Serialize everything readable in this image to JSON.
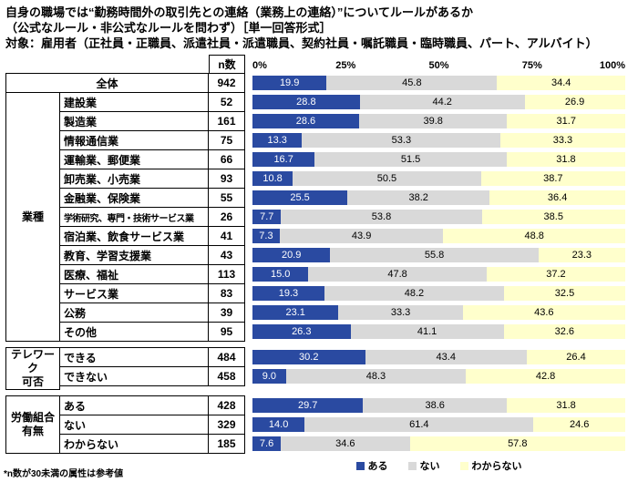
{
  "title": {
    "line1": "自身の職場では“勤務時間外の取引先との連絡（業務上の連絡）”についてルールがあるか",
    "line2": "（公式なルール・非公式なルールを問わず）［単一回答形式］",
    "line3": "対象：雇用者（正社員・正職員、派遣社員・派遣職員、契約社員・嘱託職員・臨時職員、パート、アルバイト）"
  },
  "table": {
    "n_header": "n数"
  },
  "footnote": "*n数が30未満の属性は参考値",
  "chart_data": {
    "type": "bar",
    "stacked": true,
    "orientation": "horizontal",
    "title": "自身の職場では“勤務時間外の取引先との連絡（業務上の連絡）”についてルールがあるか",
    "x_ticks": [
      "0%",
      "25%",
      "50%",
      "75%",
      "100%"
    ],
    "xlim": [
      0,
      100
    ],
    "series_names": [
      "ある",
      "ない",
      "わからない"
    ],
    "colors": [
      "#2a4aa1",
      "#d9d9d9",
      "#ffffcc"
    ],
    "sections": [
      {
        "group": null,
        "rows": [
          {
            "label": "全体",
            "n": 942,
            "values": [
              19.9,
              45.8,
              34.4
            ]
          }
        ]
      },
      {
        "group": "業種",
        "rows": [
          {
            "label": "建設業",
            "n": 52,
            "values": [
              28.8,
              44.2,
              26.9
            ]
          },
          {
            "label": "製造業",
            "n": 161,
            "values": [
              28.6,
              39.8,
              31.7
            ]
          },
          {
            "label": "情報通信業",
            "n": 75,
            "values": [
              13.3,
              53.3,
              33.3
            ]
          },
          {
            "label": "運輸業、郵便業",
            "n": 66,
            "values": [
              16.7,
              51.5,
              31.8
            ]
          },
          {
            "label": "卸売業、小売業",
            "n": 93,
            "values": [
              10.8,
              50.5,
              38.7
            ]
          },
          {
            "label": "金融業、保険業",
            "n": 55,
            "values": [
              25.5,
              38.2,
              36.4
            ]
          },
          {
            "label": "学術研究、専門・技術サービス業",
            "n": 26,
            "values": [
              7.7,
              53.8,
              38.5
            ]
          },
          {
            "label": "宿泊業、飲食サービス業",
            "n": 41,
            "values": [
              7.3,
              43.9,
              48.8
            ]
          },
          {
            "label": "教育、学習支援業",
            "n": 43,
            "values": [
              20.9,
              55.8,
              23.3
            ]
          },
          {
            "label": "医療、福祉",
            "n": 113,
            "values": [
              15.0,
              47.8,
              37.2
            ]
          },
          {
            "label": "サービス業",
            "n": 83,
            "values": [
              19.3,
              48.2,
              32.5
            ]
          },
          {
            "label": "公務",
            "n": 39,
            "values": [
              23.1,
              33.3,
              43.6
            ]
          },
          {
            "label": "その他",
            "n": 95,
            "values": [
              26.3,
              41.1,
              32.6
            ]
          }
        ]
      },
      {
        "group": "テレワーク\n可否",
        "rows": [
          {
            "label": "できる",
            "n": 484,
            "values": [
              30.2,
              43.4,
              26.4
            ]
          },
          {
            "label": "できない",
            "n": 458,
            "values": [
              9.0,
              48.3,
              42.8
            ]
          }
        ]
      },
      {
        "group": "労働組合\n有無",
        "rows": [
          {
            "label": "ある",
            "n": 428,
            "values": [
              29.7,
              38.6,
              31.8
            ]
          },
          {
            "label": "ない",
            "n": 329,
            "values": [
              14.0,
              61.4,
              24.6
            ]
          },
          {
            "label": "わからない",
            "n": 185,
            "values": [
              7.6,
              34.6,
              57.8
            ]
          }
        ]
      }
    ]
  }
}
